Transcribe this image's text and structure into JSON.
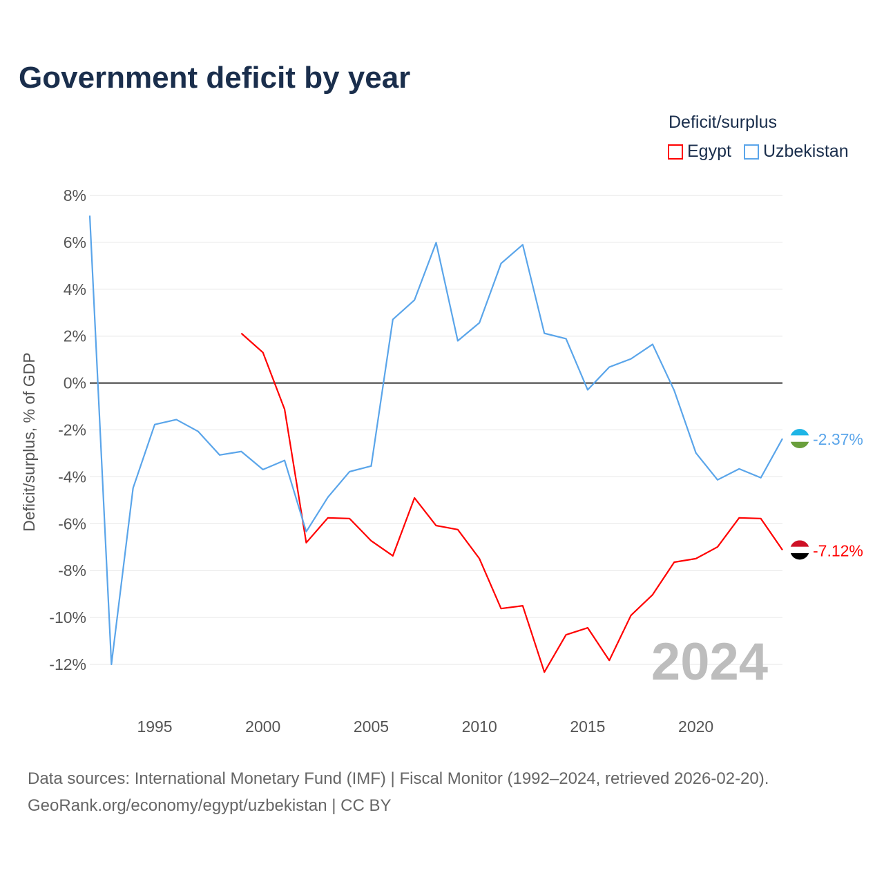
{
  "title": "Government deficit by year",
  "legend": {
    "title": "Deficit/surplus",
    "items": [
      {
        "name": "Egypt",
        "color": "#ff0000"
      },
      {
        "name": "Uzbekistan",
        "color": "#5aa5ea"
      }
    ]
  },
  "year_label": "2024",
  "footer": {
    "line1": "Data sources: International Monetary Fund (IMF) | Fiscal Monitor (1992–2024, retrieved 2026-02-20).",
    "line2": "GeoRank.org/economy/egypt/uzbekistan | CC BY"
  },
  "chart_data": {
    "type": "line",
    "title": "Government deficit by year",
    "xlabel": "",
    "ylabel": "Deficit/surplus, % of GDP",
    "xlim": [
      1992,
      2024
    ],
    "ylim": [
      -12,
      8
    ],
    "yticks": [
      8,
      6,
      4,
      2,
      0,
      -2,
      -4,
      -6,
      -8,
      -10,
      -12
    ],
    "ytick_labels": [
      "8%",
      "6%",
      "4%",
      "2%",
      "0%",
      "-2%",
      "-4%",
      "-6%",
      "-8%",
      "-10%",
      "-12%"
    ],
    "xticks": [
      1995,
      2000,
      2005,
      2010,
      2015,
      2020
    ],
    "xtick_labels": [
      "1995",
      "2000",
      "2005",
      "2010",
      "2015",
      "2020"
    ],
    "grid": true,
    "legend_position": "top-right",
    "series": [
      {
        "name": "Egypt",
        "color": "#ff0000",
        "end_label": "-7.12%",
        "x": [
          1999,
          2000,
          2001,
          2002,
          2003,
          2004,
          2005,
          2006,
          2007,
          2008,
          2009,
          2010,
          2011,
          2012,
          2013,
          2014,
          2015,
          2016,
          2017,
          2018,
          2019,
          2020,
          2021,
          2022,
          2023,
          2024
        ],
        "values": [
          2.12,
          1.3,
          -1.12,
          -6.81,
          -5.75,
          -5.78,
          -6.73,
          -7.37,
          -4.9,
          -6.08,
          -6.25,
          -7.49,
          -9.62,
          -9.5,
          -12.33,
          -10.74,
          -10.44,
          -11.83,
          -9.91,
          -9.03,
          -7.64,
          -7.49,
          -6.99,
          -5.75,
          -5.78,
          -7.12
        ]
      },
      {
        "name": "Uzbekistan",
        "color": "#5aa5ea",
        "end_label": "-2.37%",
        "x": [
          1992,
          1993,
          1994,
          1995,
          1996,
          1997,
          1998,
          1999,
          2000,
          2001,
          2002,
          2003,
          2004,
          2005,
          2006,
          2007,
          2008,
          2009,
          2010,
          2011,
          2012,
          2013,
          2014,
          2015,
          2016,
          2017,
          2018,
          2019,
          2020,
          2021,
          2022,
          2023,
          2024
        ],
        "values": [
          7.14,
          -12.0,
          -4.48,
          -1.77,
          -1.56,
          -2.06,
          -3.07,
          -2.92,
          -3.69,
          -3.3,
          -6.34,
          -4.87,
          -3.78,
          -3.54,
          2.71,
          3.54,
          5.99,
          1.8,
          2.57,
          5.1,
          5.9,
          2.12,
          1.89,
          -0.29,
          0.68,
          1.03,
          1.65,
          -0.32,
          -2.98,
          -4.13,
          -3.66,
          -4.04,
          -2.37
        ]
      }
    ]
  }
}
